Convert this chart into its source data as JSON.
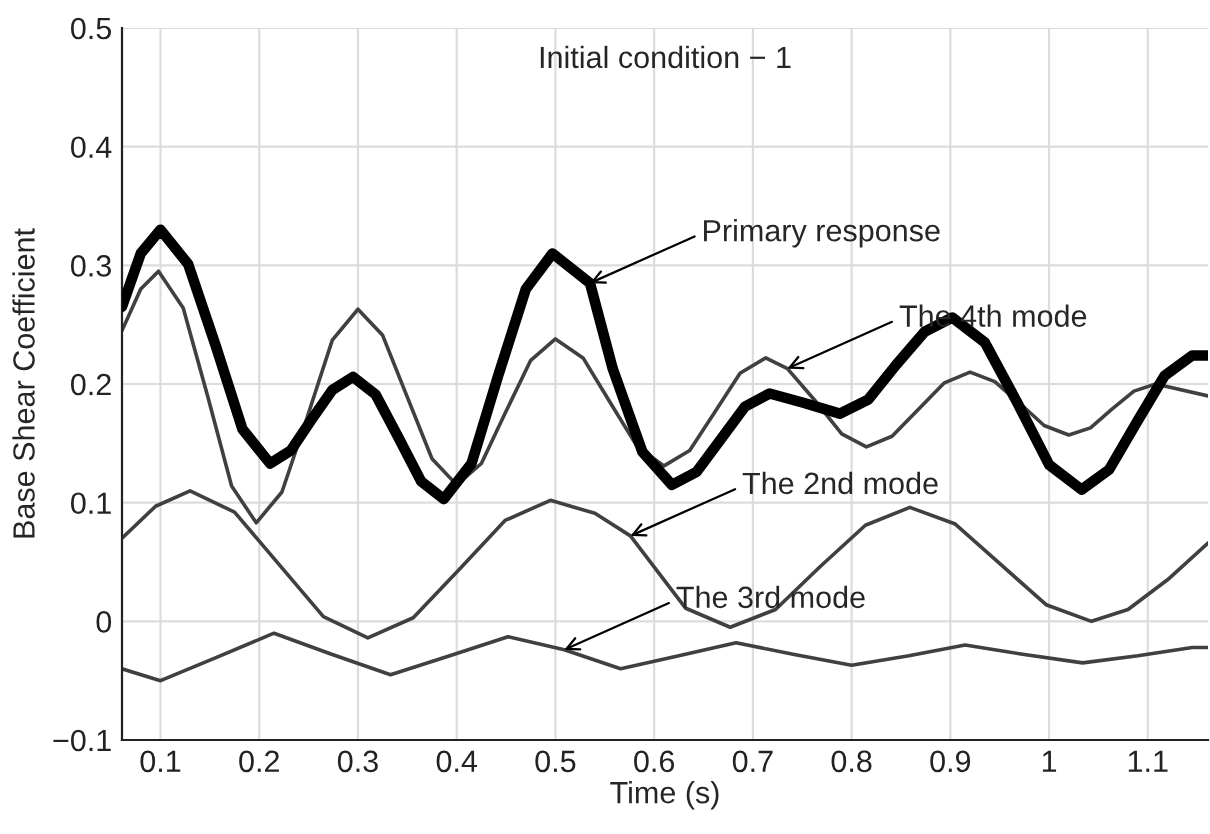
{
  "chart_data": {
    "type": "line",
    "title": "Initial condition − 1",
    "xlabel": "Time (s)",
    "ylabel": "Base Shear Coefficient",
    "xlim": [
      0.061,
      1.161
    ],
    "xticks": [
      0.1,
      0.2,
      0.3,
      0.4,
      0.5,
      0.6,
      0.7,
      0.8,
      0.9,
      {
        "value": 1.0,
        "label": "1"
      },
      1.1
    ],
    "ylim": [
      -0.1,
      0.5
    ],
    "yticks": [
      -0.1,
      0,
      0.1,
      0.2,
      0.3,
      0.4,
      0.5
    ],
    "grid": true,
    "legend": false,
    "marker": "none",
    "line_style": "solid",
    "series": [
      {
        "color": "#404040",
        "x": [
          0.061,
          0.08,
          0.098,
          0.123,
          0.148,
          0.172,
          0.197,
          0.223,
          0.249,
          0.274,
          0.3,
          0.325,
          0.35,
          0.375,
          0.4,
          0.425,
          0.45,
          0.475,
          0.5,
          0.528,
          0.555,
          0.583,
          0.61,
          0.636,
          0.662,
          0.687,
          0.713,
          0.735,
          0.764,
          0.79,
          0.815,
          0.841,
          0.868,
          0.894,
          0.92,
          0.945,
          0.97,
          0.995,
          1.02,
          1.042,
          1.064,
          1.086,
          1.108,
          1.161
        ],
        "values": [
          0.245,
          0.28,
          0.295,
          0.264,
          0.189,
          0.114,
          0.083,
          0.109,
          0.173,
          0.237,
          0.263,
          0.241,
          0.189,
          0.137,
          0.115,
          0.133,
          0.177,
          0.22,
          0.238,
          0.222,
          0.185,
          0.147,
          0.131,
          0.144,
          0.177,
          0.209,
          0.222,
          0.213,
          0.185,
          0.158,
          0.147,
          0.156,
          0.179,
          0.201,
          0.21,
          0.202,
          0.184,
          0.165,
          0.157,
          0.163,
          0.179,
          0.194,
          0.2,
          0.19
        ]
      },
      {
        "color": "#404040",
        "x": [
          0.061,
          0.095,
          0.13,
          0.175,
          0.22,
          0.265,
          0.31,
          0.356,
          0.403,
          0.449,
          0.495,
          0.54,
          0.576,
          0.632,
          0.677,
          0.723,
          0.768,
          0.814,
          0.859,
          0.905,
          0.951,
          0.997,
          1.043,
          1.08,
          1.12,
          1.161
        ],
        "values": [
          0.07,
          0.097,
          0.11,
          0.092,
          0.048,
          0.004,
          -0.014,
          0.003,
          0.044,
          0.085,
          0.102,
          0.091,
          0.072,
          0.011,
          -0.005,
          0.01,
          0.046,
          0.081,
          0.096,
          0.082,
          0.048,
          0.014,
          0.0,
          0.01,
          0.035,
          0.066
        ]
      },
      {
        "color": "#404040",
        "x": [
          0.061,
          0.1,
          0.158,
          0.215,
          0.274,
          0.333,
          0.393,
          0.452,
          0.509,
          0.566,
          0.625,
          0.683,
          0.742,
          0.8,
          0.858,
          0.915,
          0.975,
          1.034,
          1.09,
          1.145,
          1.161
        ],
        "values": [
          -0.04,
          -0.05,
          -0.03,
          -0.01,
          -0.028,
          -0.045,
          -0.029,
          -0.013,
          -0.024,
          -0.04,
          -0.029,
          -0.018,
          -0.028,
          -0.037,
          -0.029,
          -0.02,
          -0.028,
          -0.035,
          -0.029,
          -0.022,
          -0.022
        ]
      },
      {
        "color": "#000000",
        "x": [
          0.061,
          0.08,
          0.1,
          0.128,
          0.156,
          0.183,
          0.211,
          0.232,
          0.253,
          0.274,
          0.295,
          0.318,
          0.341,
          0.364,
          0.387,
          0.415,
          0.442,
          0.47,
          0.497,
          0.535,
          0.558,
          0.588,
          0.618,
          0.643,
          0.668,
          0.692,
          0.717,
          0.752,
          0.788,
          0.817,
          0.845,
          0.874,
          0.902,
          0.935,
          0.968,
          1.0,
          1.033,
          1.061,
          1.089,
          1.117,
          1.145,
          1.161
        ],
        "values": [
          0.265,
          0.31,
          0.33,
          0.301,
          0.232,
          0.162,
          0.133,
          0.144,
          0.17,
          0.195,
          0.206,
          0.191,
          0.155,
          0.118,
          0.103,
          0.133,
          0.207,
          0.28,
          0.31,
          0.285,
          0.213,
          0.143,
          0.115,
          0.126,
          0.154,
          0.181,
          0.192,
          0.184,
          0.175,
          0.187,
          0.216,
          0.244,
          0.256,
          0.235,
          0.184,
          0.132,
          0.111,
          0.128,
          0.168,
          0.207,
          0.224,
          0.224
        ]
      }
    ],
    "annotations": [
      {
        "text": "Primary response",
        "x": 0.535,
        "y": 0.285
      },
      {
        "text": "The 4th mode",
        "x": 0.735,
        "y": 0.213
      },
      {
        "text": "The 2nd mode",
        "x": 0.576,
        "y": 0.072
      },
      {
        "text": "The 3rd mode",
        "x": 0.509,
        "y": -0.024
      }
    ]
  }
}
